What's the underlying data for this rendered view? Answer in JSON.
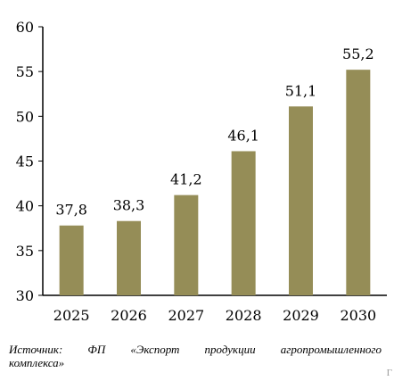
{
  "chart_data": {
    "type": "bar",
    "categories": [
      "2025",
      "2026",
      "2027",
      "2028",
      "2029",
      "2030"
    ],
    "values": [
      37.8,
      38.3,
      41.2,
      46.1,
      51.1,
      55.2
    ],
    "value_labels": [
      "37,8",
      "38,3",
      "41,2",
      "46,1",
      "51,1",
      "55,2"
    ],
    "title": "",
    "xlabel": "",
    "ylabel": "",
    "ylim": [
      30,
      60
    ],
    "yticks": [
      "30",
      "35",
      "40",
      "45",
      "50",
      "55",
      "60"
    ],
    "grid": false,
    "bar_color": "#958D57"
  },
  "source": {
    "words": [
      "Источник:",
      "ФП",
      "«Экспорт",
      "продукции",
      "агропромышленного"
    ],
    "line2": "комплекса»"
  },
  "corner_mark": "Г"
}
